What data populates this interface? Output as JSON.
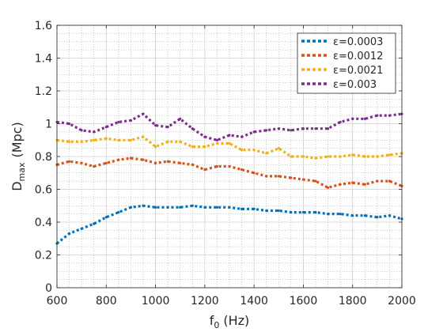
{
  "chart_data": {
    "type": "line",
    "title": "",
    "xlabel": {
      "main": "f",
      "sub": "0",
      "unit": "(Hz)"
    },
    "ylabel": {
      "main": "D",
      "sub": "max",
      "unit": "(Mpc)"
    },
    "xlim": [
      600,
      2000
    ],
    "ylim": [
      0,
      1.6
    ],
    "xticks": [
      600,
      800,
      1000,
      1200,
      1400,
      1600,
      1800,
      2000
    ],
    "yticks": [
      0,
      0.2,
      0.4,
      0.6,
      0.8,
      1,
      1.2,
      1.4,
      1.6
    ],
    "xtick_labels": [
      "600",
      "800",
      "1000",
      "1200",
      "1400",
      "1600",
      "1800",
      "2000"
    ],
    "ytick_labels": [
      "0",
      "0.2",
      "0.4",
      "0.6",
      "0.8",
      "1",
      "1.2",
      "1.4",
      "1.6"
    ],
    "grid": "major and minor, dotted",
    "legend_position": "top-right",
    "line_style": "dotted",
    "x": [
      600,
      650,
      700,
      750,
      800,
      850,
      900,
      950,
      1000,
      1050,
      1100,
      1150,
      1200,
      1250,
      1300,
      1350,
      1400,
      1450,
      1500,
      1550,
      1600,
      1650,
      1700,
      1750,
      1800,
      1850,
      1900,
      1950,
      2000
    ],
    "series": [
      {
        "name": "ε=0.0003",
        "color": "#0072BD",
        "values": [
          0.27,
          0.33,
          0.36,
          0.39,
          0.43,
          0.46,
          0.49,
          0.5,
          0.49,
          0.49,
          0.49,
          0.5,
          0.49,
          0.49,
          0.49,
          0.48,
          0.48,
          0.47,
          0.47,
          0.46,
          0.46,
          0.46,
          0.45,
          0.45,
          0.44,
          0.44,
          0.43,
          0.44,
          0.42
        ]
      },
      {
        "name": "ε=0.0012",
        "color": "#D95319",
        "values": [
          0.75,
          0.77,
          0.76,
          0.74,
          0.76,
          0.78,
          0.79,
          0.78,
          0.76,
          0.77,
          0.76,
          0.75,
          0.72,
          0.74,
          0.74,
          0.72,
          0.7,
          0.68,
          0.68,
          0.67,
          0.66,
          0.65,
          0.61,
          0.63,
          0.64,
          0.63,
          0.65,
          0.65,
          0.62
        ]
      },
      {
        "name": "ε=0.0021",
        "color": "#EDB120",
        "values": [
          0.9,
          0.89,
          0.89,
          0.9,
          0.91,
          0.9,
          0.9,
          0.92,
          0.86,
          0.89,
          0.89,
          0.86,
          0.86,
          0.88,
          0.88,
          0.84,
          0.84,
          0.82,
          0.85,
          0.8,
          0.8,
          0.79,
          0.8,
          0.8,
          0.81,
          0.8,
          0.8,
          0.81,
          0.82
        ]
      },
      {
        "name": "ε=0.003",
        "color": "#7E2F8E",
        "values": [
          1.01,
          1.0,
          0.96,
          0.95,
          0.98,
          1.01,
          1.02,
          1.06,
          0.99,
          0.98,
          1.03,
          0.97,
          0.92,
          0.9,
          0.93,
          0.92,
          0.95,
          0.96,
          0.97,
          0.96,
          0.97,
          0.97,
          0.97,
          1.01,
          1.03,
          1.03,
          1.05,
          1.05,
          1.06
        ]
      }
    ]
  }
}
